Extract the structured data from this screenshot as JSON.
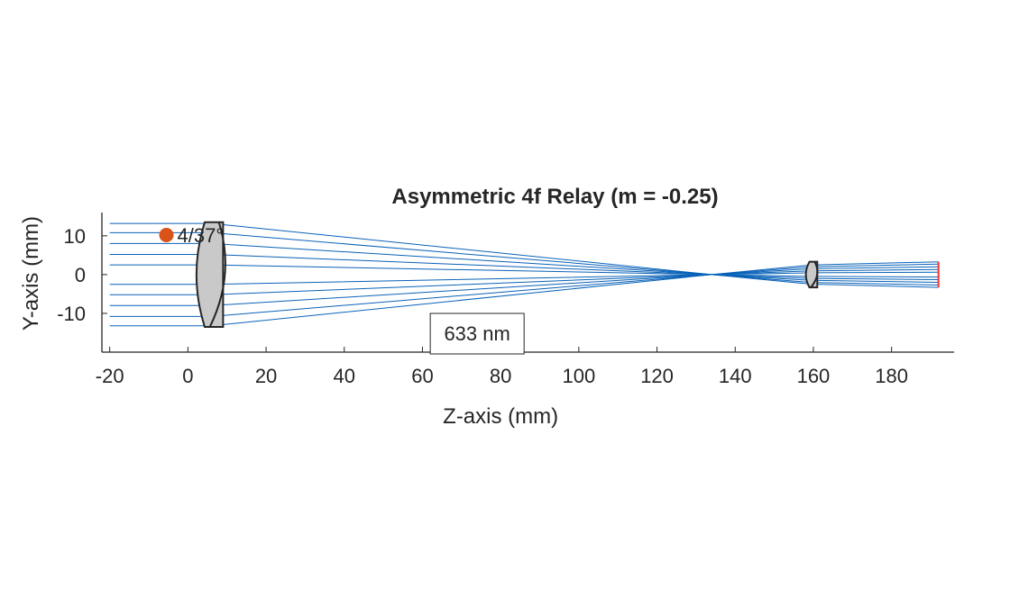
{
  "chart_data": {
    "type": "scatter",
    "title": "Asymmetric 4f Relay (m = -0.25)",
    "xlabel": "Z-axis (mm)",
    "ylabel": "Y-axis (mm)",
    "xlim": [
      -22,
      196
    ],
    "ylim": [
      -20,
      16
    ],
    "xticks": [
      -20,
      0,
      20,
      40,
      60,
      80,
      100,
      120,
      140,
      160,
      180
    ],
    "yticks": [
      -10,
      0,
      10
    ],
    "grid": false,
    "wavelength_label": "633 nm",
    "source_label": "4/37°",
    "source_point": {
      "x": -5.5,
      "y": 10.2
    },
    "rays": {
      "input_heights": [
        13.2,
        10.8,
        8.0,
        5.2,
        2.5,
        -2.5,
        -5.2,
        -8.0,
        -10.8,
        -13.2
      ],
      "start_z": -20,
      "lens1_z": 2,
      "focus_z": 134,
      "lens2_z": 158,
      "image_z": 192,
      "image_half_height": 3.3
    },
    "lenses": [
      {
        "name": "lens-1",
        "z_left": 2,
        "z_right": 9,
        "half_aperture": 13.5,
        "cemented_z": 6
      },
      {
        "name": "lens-2",
        "z_left": 158,
        "z_right": 161,
        "half_aperture": 3.3,
        "cemented_z": 159.5
      }
    ],
    "image_plane": {
      "z": 192,
      "half_height": 3.3
    },
    "colors": {
      "ray": "#0a62b8",
      "lens_fill": "#c9c9c9",
      "lens_edge": "#262626",
      "image_plane": "#ff3030",
      "source": "#d95319",
      "axis": "#262626"
    }
  }
}
